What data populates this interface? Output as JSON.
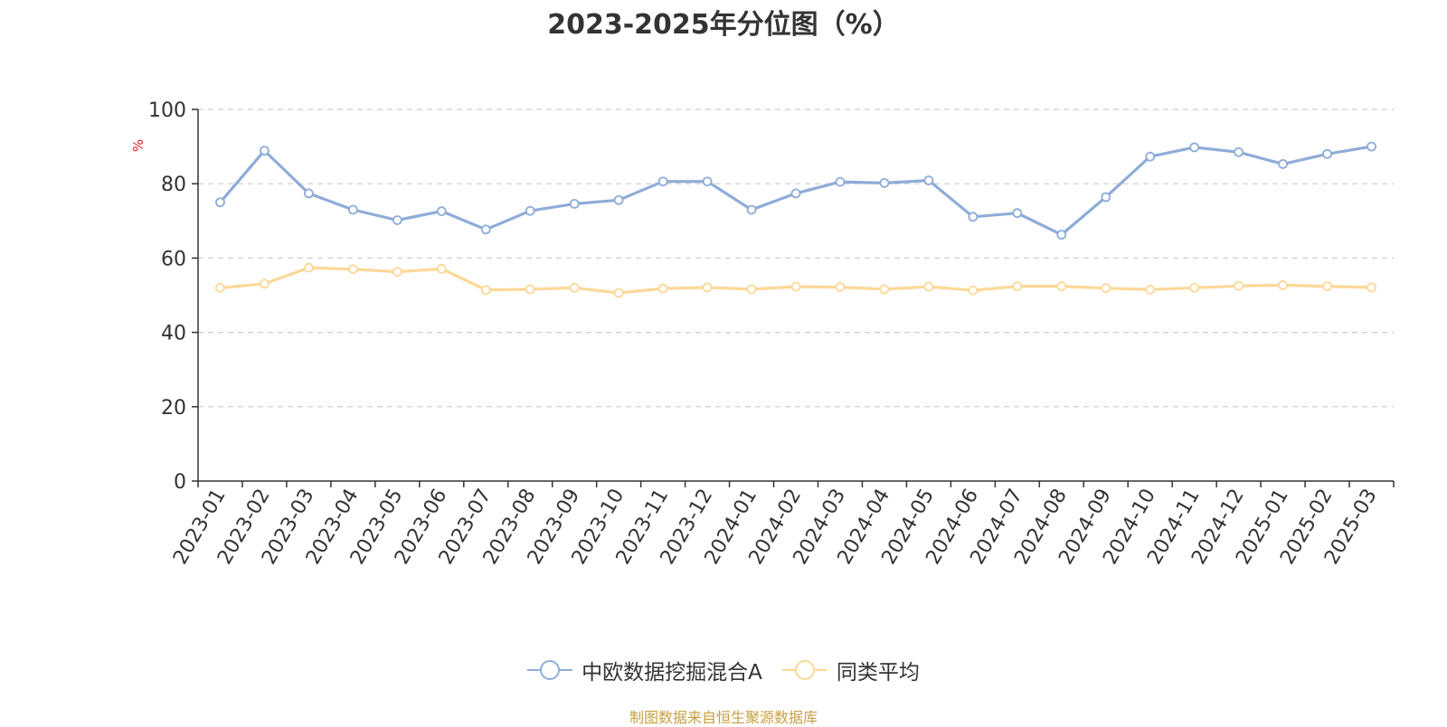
{
  "chart_data": {
    "type": "line",
    "title": "2023-2025年分位图（%）",
    "ylabel": "%",
    "ylim": [
      0,
      100
    ],
    "yticks": [
      "0",
      "20",
      "40",
      "60",
      "80",
      "100"
    ],
    "grid": true,
    "legend_position": "bottom",
    "categories": [
      "2023-01",
      "2023-02",
      "2023-03",
      "2023-04",
      "2023-05",
      "2023-06",
      "2023-07",
      "2023-08",
      "2023-09",
      "2023-10",
      "2023-11",
      "2023-12",
      "2024-01",
      "2024-02",
      "2024-03",
      "2024-04",
      "2024-05",
      "2024-06",
      "2024-07",
      "2024-08",
      "2024-09",
      "2024-10",
      "2024-11",
      "2024-12",
      "2025-01",
      "2025-02",
      "2025-03"
    ],
    "series": [
      {
        "name": "中欧数据挖掘混合A",
        "color": "#8eacd8",
        "values": [
          75.0,
          88.9,
          77.4,
          73.0,
          70.2,
          72.6,
          67.7,
          72.7,
          74.6,
          75.6,
          80.6,
          80.6,
          73.0,
          77.4,
          80.5,
          80.2,
          80.9,
          71.1,
          72.1,
          66.3,
          76.4,
          87.3,
          89.8,
          88.5,
          85.3,
          88.0,
          90.0
        ]
      },
      {
        "name": "同类平均",
        "color": "#fcd898",
        "values": [
          52.0,
          53.1,
          57.4,
          57.0,
          56.3,
          57.1,
          51.4,
          51.6,
          52.0,
          50.6,
          51.8,
          52.1,
          51.6,
          52.3,
          52.2,
          51.6,
          52.3,
          51.3,
          52.4,
          52.4,
          51.9,
          51.5,
          52.0,
          52.5,
          52.7,
          52.4,
          52.1
        ]
      }
    ]
  },
  "colors": {
    "title": "#333333",
    "axis": "#333333",
    "grid": "#cccccc",
    "unit_label": "#e02020",
    "source": "#c8a040"
  },
  "footer": {
    "source": "制图数据来自恒生聚源数据库"
  }
}
